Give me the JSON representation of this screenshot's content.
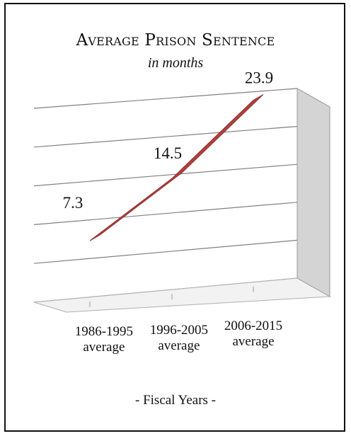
{
  "chart_data": {
    "type": "line",
    "title": "Average Prison Sentence",
    "subtitle": "in months",
    "categories": [
      "1986-1995 average",
      "1996-2005 average",
      "2006-2015 average"
    ],
    "category_lines": [
      [
        "1986-1995",
        "average"
      ],
      [
        "1996-2005",
        "average"
      ],
      [
        "2006-2015",
        "average"
      ]
    ],
    "series": [
      {
        "values": [
          7.3,
          14.5,
          23.9
        ],
        "color": "#b0413e"
      }
    ],
    "data_labels": [
      "7.3",
      "14.5",
      "23.9"
    ],
    "xlabel": "- Fiscal Years -",
    "ylabel": "",
    "ylim": [
      0,
      25
    ],
    "grid": true,
    "style": "3d"
  }
}
